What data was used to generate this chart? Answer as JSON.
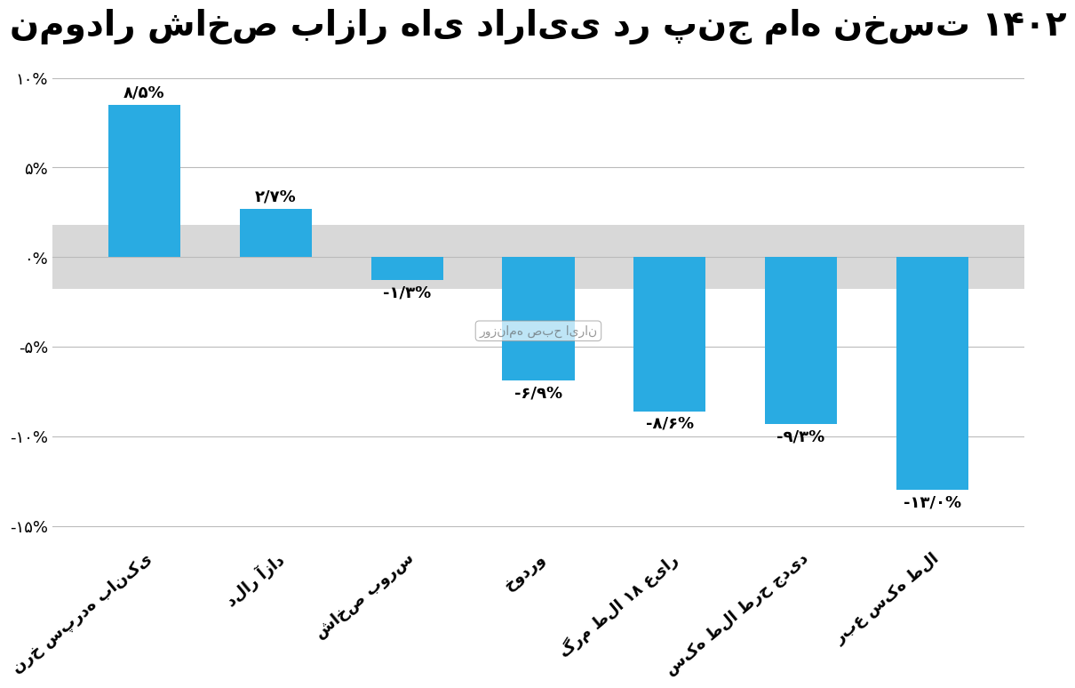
{
  "title": "نمودار شاخص بازار های دارایی در پنج ماه نخست ۱۴۰۲",
  "categories": [
    "نرخ سپرده بانکی",
    "دلار آزاد",
    "شاخص بورس",
    "خودرو",
    "گرم طلا ۱۸ عیار",
    "سکه طلا طرح جدید",
    "ربع سکه طلا"
  ],
  "values": [
    8.5,
    2.7,
    -1.3,
    -6.9,
    -8.6,
    -9.3,
    -13.0
  ],
  "labels": [
    "۸/۵%",
    "۲/۷%",
    "-۱/۳%",
    "-۶/۹%",
    "-۸/۶%",
    "-۹/۳%",
    "-۱۳/۰%"
  ],
  "bar_color": "#29ABE2",
  "background_color": "#FFFFFF",
  "zero_band_color": "#D8D8D8",
  "ylim": [
    -16,
    11
  ],
  "yticks": [
    -15,
    -10,
    -5,
    0,
    5,
    10
  ],
  "ytick_labels": [
    "-۱۵%",
    "-۱۰%",
    "-۵%",
    "۰%",
    "۵%",
    "۱۰%"
  ],
  "title_fontsize": 28,
  "label_fontsize": 13,
  "tick_fontsize": 13,
  "cat_fontsize": 13,
  "watermark": "روزنامه صبح ایران"
}
